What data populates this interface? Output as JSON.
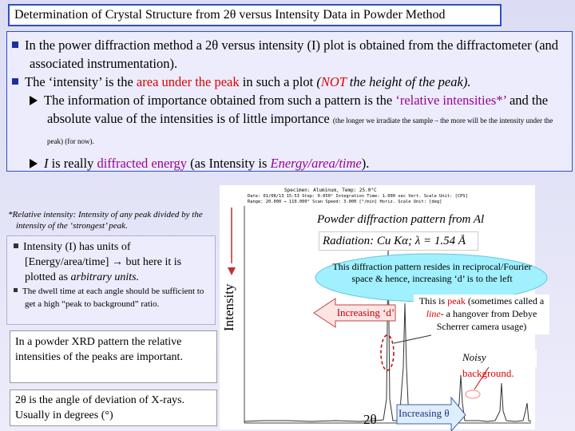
{
  "title": "Determination of Crystal Structure from 2θ versus Intensity Data in Powder Method",
  "main_box": {
    "bullet_1": "In the power diffraction method a 2θ versus intensity (I) plot is obtained from the diffractometer (and associated instrumentation).",
    "bullet_2": {
      "a": "The ‘intensity’ is the ",
      "b": "area under the peak",
      "c": " in such a plot ",
      "d": "(",
      "e": "NOT",
      "f": " the height of the peak)."
    },
    "sub_bullet_1": {
      "a": "The information of importance obtained from such a pattern is the ",
      "b": "‘relative intensities*’",
      "c": " and the absolute value of the intensities is of little importance ",
      "d": "(the longer we irradiate the sample – the more will be the intensity under the peak) (for now)."
    },
    "sub_bullet_2": {
      "a": "I",
      "b": " is really ",
      "c": "diffracted energy",
      "d": " (as Intensity is ",
      "e": "Energy/area/time",
      "f": ")."
    }
  },
  "footnote": "*Relative intensity: Intensity of any peak divided by the intensity of the ‘strongest’ peak.",
  "left_box": {
    "bullet_1": {
      "a": "Intensity (I) has units of [Energy/area/time] → but here it is plotted as ",
      "b": "arbitrary units."
    },
    "bullet_2": "The dwell time at each angle should be sufficient to get a high “peak to background” ratio."
  },
  "note_relative": "In a powder XRD pattern the relative intensities of the peaks are important.",
  "note_angle": "2θ is the angle of deviation of X-rays. Usually in degrees (°)",
  "plot": {
    "header_1": "Specimen: Aluminum,  Temp: 25.0°C",
    "header_2": "Date: 01/08/13 15:53   Step: 0.050°   Integration Time: 1.000 sec   Vert. Scale Unit: [CPS]",
    "header_3": "Range: 20.000 → 110.000°   Scan Speed: 3.000 [°/min]   Horiz. Scale Unit: [deg]",
    "y_label": "Intensity",
    "x_label": "2θ"
  },
  "caption": "Powder diffraction pattern from Al",
  "radiation": "Radiation: Cu Kα; λ = 1.54 Å",
  "reciprocal_note": "This diffraction pattern resides in reciprocal/Fourier space & hence, increasing ‘d’ is to the left",
  "increasing_d": "Increasing ‘d’",
  "peak_note": {
    "a": "This is ",
    "b": "peak",
    "c": " (sometimes called a ",
    "d": "line",
    "e": "- a hangover from Debye Scherrer camera usage)"
  },
  "noisy": {
    "a": "Noisy",
    "b": " background."
  },
  "increasing_theta": "Increasing θ"
}
